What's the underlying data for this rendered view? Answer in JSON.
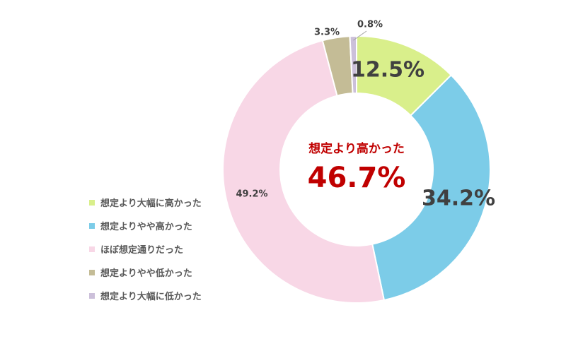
{
  "chart_data": {
    "type": "pie",
    "title": "",
    "categories": [
      "想定より大幅に高かった",
      "想定よりやや高かった",
      "ほぼ想定通りだった",
      "想定よりやや低かった",
      "想定より大幅に低かった"
    ],
    "values": [
      12.5,
      34.2,
      49.2,
      3.3,
      0.8
    ],
    "value_labels": [
      "12.5%",
      "34.2%",
      "49.2%",
      "3.3%",
      "0.8%"
    ],
    "colors": [
      "#d9ef8b",
      "#7ccce8",
      "#f8d7e6",
      "#c4bc96",
      "#ccc0da"
    ],
    "legend_position": "left",
    "donut": true
  },
  "center": {
    "label": "想定より高かった",
    "value": "46.7%"
  }
}
